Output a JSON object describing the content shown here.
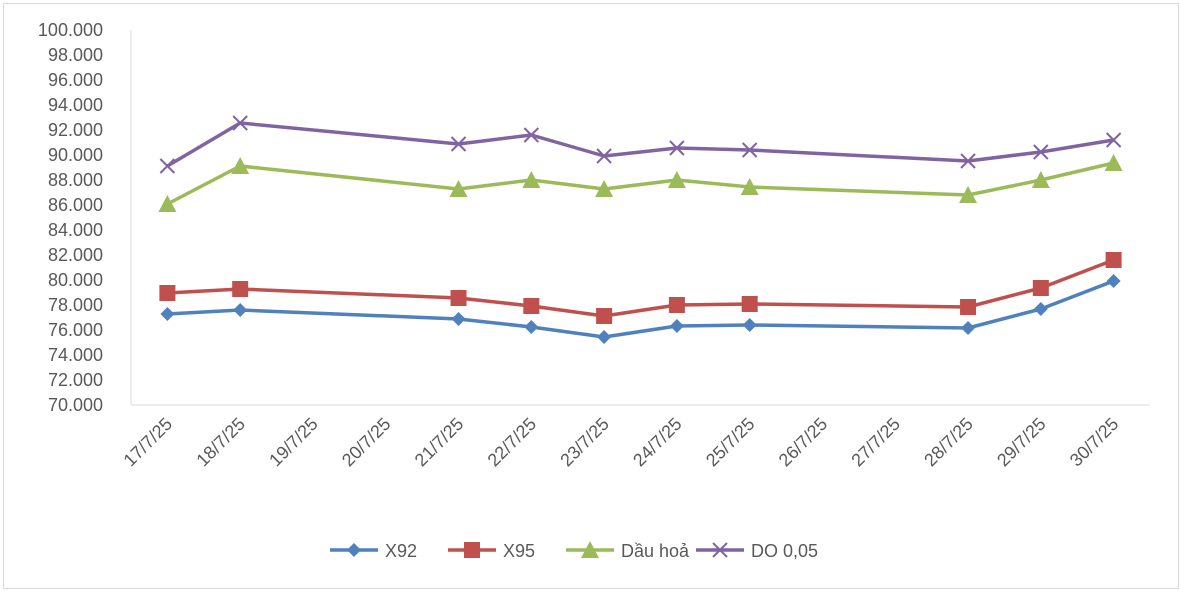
{
  "chart_data": {
    "type": "line",
    "title": "",
    "xlabel": "",
    "ylabel": "",
    "ylim": [
      70000,
      100000
    ],
    "ytick_step": 2000,
    "yticks": [
      "70.000",
      "72.000",
      "74.000",
      "76.000",
      "78.000",
      "80.000",
      "82.000",
      "84.000",
      "86.000",
      "88.000",
      "90.000",
      "92.000",
      "94.000",
      "96.000",
      "98.000",
      "100.000"
    ],
    "grid": false,
    "legend_position": "bottom",
    "categories": [
      "17/7/25",
      "18/7/25",
      "19/7/25",
      "20/7/25",
      "21/7/25",
      "22/7/25",
      "23/7/25",
      "24/7/25",
      "25/7/25",
      "26/7/25",
      "27/7/25",
      "28/7/25",
      "29/7/25",
      "30/7/25"
    ],
    "series": [
      {
        "name": "X92",
        "color": "#4f81bd",
        "marker": "diamond",
        "values": [
          77280,
          77600,
          null,
          null,
          76880,
          76240,
          75440,
          76320,
          76400,
          null,
          null,
          76160,
          77680,
          79920
        ]
      },
      {
        "name": "X95",
        "color": "#c0504d",
        "marker": "square",
        "values": [
          78960,
          79280,
          null,
          null,
          78560,
          77920,
          77120,
          78000,
          78080,
          null,
          null,
          77840,
          79360,
          81600
        ]
      },
      {
        "name": "Dầu hoả",
        "color": "#9bbb59",
        "marker": "triangle",
        "values": [
          86080,
          89120,
          null,
          null,
          87280,
          88000,
          87280,
          88000,
          87440,
          null,
          null,
          86800,
          88000,
          89360
        ]
      },
      {
        "name": "DO 0,05",
        "color": "#8064a2",
        "marker": "x",
        "values": [
          89120,
          92560,
          null,
          null,
          90880,
          91600,
          89920,
          90560,
          90400,
          null,
          null,
          89520,
          90240,
          91200
        ]
      }
    ]
  }
}
